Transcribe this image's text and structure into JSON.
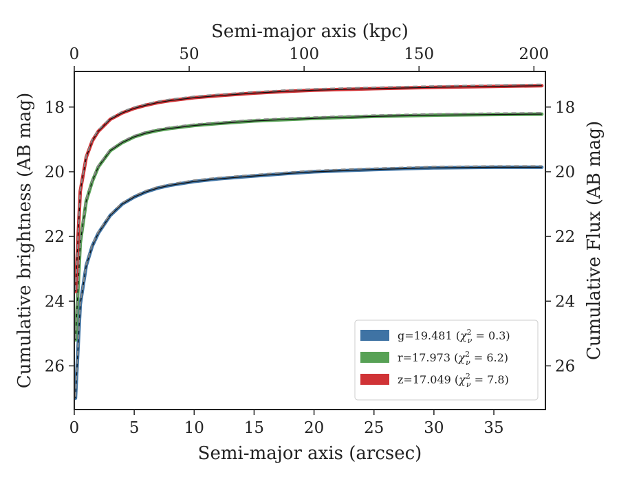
{
  "chart_data": {
    "type": "line",
    "xlabel": "Semi-major axis (arcsec)",
    "x2label": "Semi-major axis (kpc)",
    "ylabel": "Cumulative brightness (AB mag)",
    "y2label": "Cumulative Flux (AB mag)",
    "xlim": [
      0,
      39.3
    ],
    "x2lim": [
      0,
      205
    ],
    "ylim": [
      27.35,
      16.9
    ],
    "y_inverted": true,
    "xticks": [
      0,
      5,
      10,
      15,
      20,
      25,
      30,
      35
    ],
    "x2ticks": [
      0,
      50,
      100,
      150,
      200
    ],
    "yticks": [
      18,
      20,
      22,
      24,
      26
    ],
    "legend_position": "lower-right",
    "model_line_style": "gray dashed",
    "series": [
      {
        "name": "g=19.481 (χ²ν = 0.3)",
        "label": "g=19.481 (",
        "chi_text": "χ",
        "chi_sup": "2",
        "chi_sub": "ν",
        "chi_value": " = 0.3)",
        "color": "#3f73a4",
        "x": [
          0.1,
          0.5,
          1,
          1.5,
          2,
          3,
          4,
          5,
          6,
          7,
          8,
          10,
          12,
          15,
          18,
          20,
          25,
          30,
          35,
          39
        ],
        "y": [
          27.0,
          24.1,
          22.9,
          22.3,
          21.9,
          21.35,
          21.0,
          20.78,
          20.62,
          20.5,
          20.42,
          20.3,
          20.22,
          20.13,
          20.05,
          20.0,
          19.93,
          19.88,
          19.86,
          19.86
        ]
      },
      {
        "name": "r=17.973 (χ²ν = 6.2)",
        "label": "r=17.973 (",
        "chi_text": "χ",
        "chi_sup": "2",
        "chi_sub": "ν",
        "chi_value": " = 6.2)",
        "color": "#57a155",
        "x": [
          0.1,
          0.5,
          1,
          1.5,
          2,
          3,
          4,
          5,
          6,
          7,
          8,
          10,
          12,
          15,
          18,
          20,
          25,
          30,
          35,
          39
        ],
        "y": [
          25.2,
          22.2,
          20.9,
          20.3,
          19.85,
          19.35,
          19.1,
          18.92,
          18.8,
          18.72,
          18.66,
          18.57,
          18.51,
          18.43,
          18.38,
          18.35,
          18.29,
          18.25,
          18.23,
          18.22
        ]
      },
      {
        "name": "z=17.049 (χ²ν = 7.8)",
        "label": "z=17.049 (",
        "chi_text": "χ",
        "chi_sup": "2",
        "chi_sub": "ν",
        "chi_value": " = 7.8)",
        "color": "#d03336",
        "x": [
          0.1,
          0.5,
          1,
          1.5,
          2,
          3,
          4,
          5,
          6,
          7,
          8,
          10,
          12,
          15,
          18,
          20,
          25,
          30,
          35,
          39
        ],
        "y": [
          23.7,
          20.6,
          19.55,
          19.05,
          18.75,
          18.38,
          18.18,
          18.04,
          17.94,
          17.86,
          17.8,
          17.71,
          17.65,
          17.57,
          17.51,
          17.48,
          17.43,
          17.39,
          17.36,
          17.34
        ]
      }
    ]
  }
}
